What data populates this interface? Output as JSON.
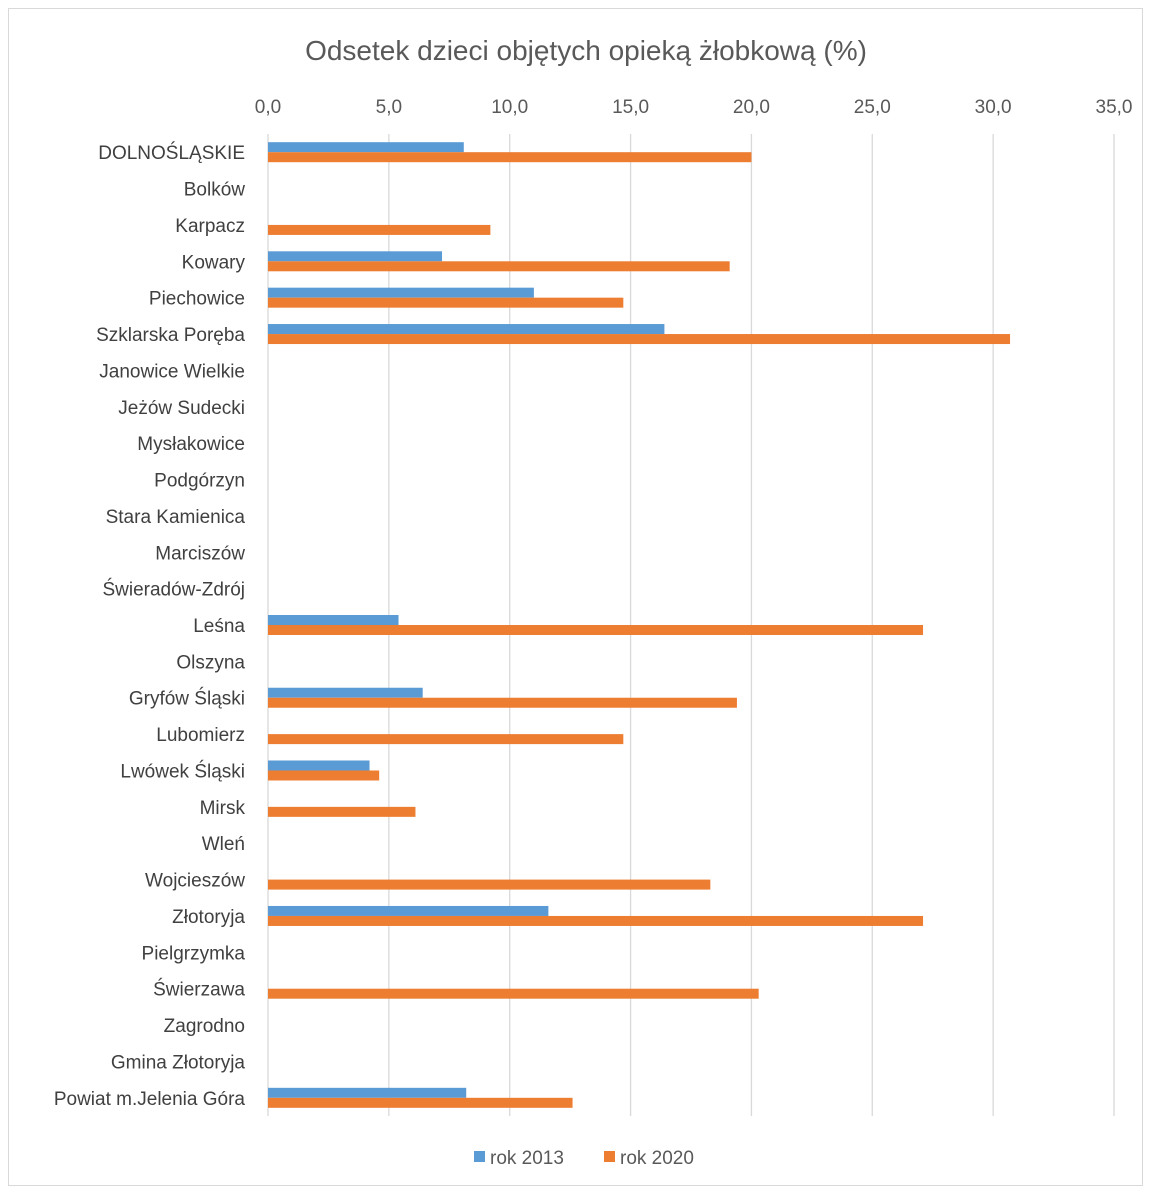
{
  "chart_data": {
    "type": "bar",
    "orientation": "horizontal",
    "title": "Odsetek dzieci objętych opieką żłobkową (%)",
    "x_axis_position": "top",
    "xlim": [
      0,
      35
    ],
    "x_ticks": [
      "0,0",
      "5,0",
      "10,0",
      "15,0",
      "20,0",
      "25,0",
      "30,0",
      "35,0"
    ],
    "grid": true,
    "legend_position": "bottom",
    "categories": [
      "DOLNOŚLĄSKIE",
      "Bolków",
      "Karpacz",
      "Kowary",
      "Piechowice",
      "Szklarska Poręba",
      "Janowice Wielkie",
      "Jeżów Sudecki",
      "Mysłakowice",
      "Podgórzyn",
      "Stara Kamienica",
      "Marciszów",
      "Świeradów-Zdrój",
      "Leśna",
      "Olszyna",
      "Gryfów Śląski",
      "Lubomierz",
      "Lwówek Śląski",
      "Mirsk",
      "Wleń",
      "Wojcieszów",
      "Złotoryja",
      "Pielgrzymka",
      "Świerzawa",
      "Zagrodno",
      "Gmina Złotoryja",
      "Powiat m.Jelenia Góra"
    ],
    "series": [
      {
        "name": "rok 2013",
        "color": "#5b9bd5",
        "values": [
          8.1,
          0,
          0,
          7.2,
          11.0,
          16.4,
          0,
          0,
          0,
          0,
          0,
          0,
          0,
          5.4,
          0,
          6.4,
          0,
          4.2,
          0,
          0,
          0,
          11.6,
          0,
          0,
          0,
          0,
          8.2
        ]
      },
      {
        "name": "rok 2020",
        "color": "#ed7d31",
        "values": [
          20.0,
          0,
          9.2,
          19.1,
          14.7,
          30.7,
          0,
          0,
          0,
          0,
          0,
          0,
          0,
          27.1,
          0,
          19.4,
          14.7,
          4.6,
          6.1,
          0,
          18.3,
          27.1,
          0,
          20.3,
          0,
          0,
          12.6
        ]
      }
    ]
  }
}
